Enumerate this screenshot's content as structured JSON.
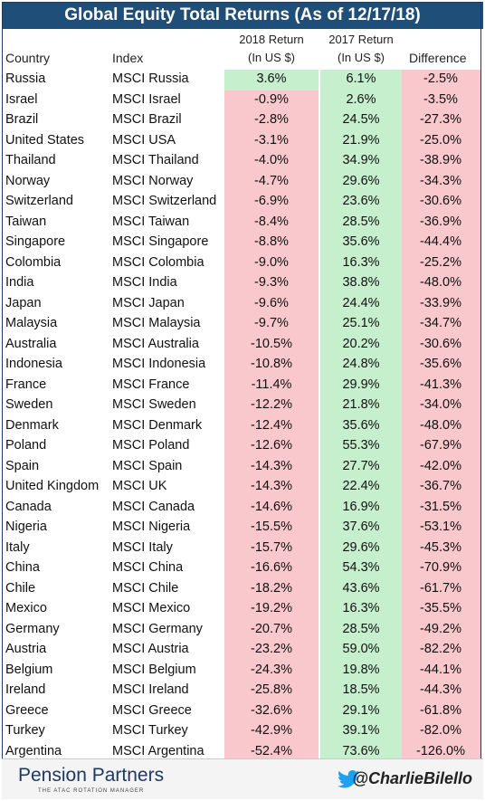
{
  "title": "Global Equity Total Returns (As of  12/17/18)",
  "headers": {
    "country": "Country",
    "index": "Index",
    "r2018_line1": "2018 Return",
    "r2018_line2": "(In US $)",
    "r2017_line1": "2017 Return",
    "r2017_line2": "(In US $)",
    "difference": "Difference"
  },
  "colors": {
    "title_bg": "#1f4e79",
    "negative_bg": "#f8c8cc",
    "positive_bg": "#c6efce"
  },
  "rows": [
    {
      "country": "Russia",
      "index": "MSCI Russia",
      "r2018": "3.6%",
      "r2017": "6.1%",
      "diff": "-2.5%"
    },
    {
      "country": "Israel",
      "index": "MSCI Israel",
      "r2018": "-0.9%",
      "r2017": "2.6%",
      "diff": "-3.5%"
    },
    {
      "country": "Brazil",
      "index": "MSCI Brazil",
      "r2018": "-2.8%",
      "r2017": "24.5%",
      "diff": "-27.3%"
    },
    {
      "country": "United States",
      "index": "MSCI USA",
      "r2018": "-3.1%",
      "r2017": "21.9%",
      "diff": "-25.0%"
    },
    {
      "country": "Thailand",
      "index": "MSCI Thailand",
      "r2018": "-4.0%",
      "r2017": "34.9%",
      "diff": "-38.9%"
    },
    {
      "country": "Norway",
      "index": "MSCI Norway",
      "r2018": "-4.7%",
      "r2017": "29.6%",
      "diff": "-34.3%"
    },
    {
      "country": "Switzerland",
      "index": "MSCI Switzerland",
      "r2018": "-6.9%",
      "r2017": "23.6%",
      "diff": "-30.6%"
    },
    {
      "country": "Taiwan",
      "index": "MSCI Taiwan",
      "r2018": "-8.4%",
      "r2017": "28.5%",
      "diff": "-36.9%"
    },
    {
      "country": "Singapore",
      "index": "MSCI Singapore",
      "r2018": "-8.8%",
      "r2017": "35.6%",
      "diff": "-44.4%"
    },
    {
      "country": "Colombia",
      "index": "MSCI Colombia",
      "r2018": "-9.0%",
      "r2017": "16.3%",
      "diff": "-25.2%"
    },
    {
      "country": "India",
      "index": "MSCI India",
      "r2018": "-9.3%",
      "r2017": "38.8%",
      "diff": "-48.0%"
    },
    {
      "country": "Japan",
      "index": "MSCI Japan",
      "r2018": "-9.6%",
      "r2017": "24.4%",
      "diff": "-33.9%"
    },
    {
      "country": "Malaysia",
      "index": "MSCI Malaysia",
      "r2018": "-9.7%",
      "r2017": "25.1%",
      "diff": "-34.7%"
    },
    {
      "country": "Australia",
      "index": "MSCI Australia",
      "r2018": "-10.5%",
      "r2017": "20.2%",
      "diff": "-30.6%"
    },
    {
      "country": "Indonesia",
      "index": "MSCI Indonesia",
      "r2018": "-10.8%",
      "r2017": "24.8%",
      "diff": "-35.6%"
    },
    {
      "country": "France",
      "index": "MSCI France",
      "r2018": "-11.4%",
      "r2017": "29.9%",
      "diff": "-41.3%"
    },
    {
      "country": "Sweden",
      "index": "MSCI Sweden",
      "r2018": "-12.2%",
      "r2017": "21.8%",
      "diff": "-34.0%"
    },
    {
      "country": "Denmark",
      "index": "MSCI Denmark",
      "r2018": "-12.4%",
      "r2017": "35.6%",
      "diff": "-48.0%"
    },
    {
      "country": "Poland",
      "index": "MSCI Poland",
      "r2018": "-12.6%",
      "r2017": "55.3%",
      "diff": "-67.9%"
    },
    {
      "country": "Spain",
      "index": "MSCI Spain",
      "r2018": "-14.3%",
      "r2017": "27.7%",
      "diff": "-42.0%"
    },
    {
      "country": "United Kingdom",
      "index": "MSCI UK",
      "r2018": "-14.3%",
      "r2017": "22.4%",
      "diff": "-36.7%"
    },
    {
      "country": "Canada",
      "index": "MSCI Canada",
      "r2018": "-14.6%",
      "r2017": "16.9%",
      "diff": "-31.5%"
    },
    {
      "country": "Nigeria",
      "index": "MSCI Nigeria",
      "r2018": "-15.5%",
      "r2017": "37.6%",
      "diff": "-53.1%"
    },
    {
      "country": "Italy",
      "index": "MSCI Italy",
      "r2018": "-15.7%",
      "r2017": "29.6%",
      "diff": "-45.3%"
    },
    {
      "country": "China",
      "index": "MSCI China",
      "r2018": "-16.6%",
      "r2017": "54.3%",
      "diff": "-70.9%"
    },
    {
      "country": "Chile",
      "index": "MSCI Chile",
      "r2018": "-18.2%",
      "r2017": "43.6%",
      "diff": "-61.7%"
    },
    {
      "country": "Mexico",
      "index": "MSCI Mexico",
      "r2018": "-19.2%",
      "r2017": "16.3%",
      "diff": "-35.5%"
    },
    {
      "country": "Germany",
      "index": "MSCI Germany",
      "r2018": "-20.7%",
      "r2017": "28.5%",
      "diff": "-49.2%"
    },
    {
      "country": "Austria",
      "index": "MSCI Austria",
      "r2018": "-23.2%",
      "r2017": "59.0%",
      "diff": "-82.2%"
    },
    {
      "country": "Belgium",
      "index": "MSCI Belgium",
      "r2018": "-24.3%",
      "r2017": "19.8%",
      "diff": "-44.1%"
    },
    {
      "country": "Ireland",
      "index": "MSCI Ireland",
      "r2018": "-25.8%",
      "r2017": "18.5%",
      "diff": "-44.3%"
    },
    {
      "country": "Greece",
      "index": "MSCI Greece",
      "r2018": "-32.6%",
      "r2017": "29.1%",
      "diff": "-61.8%"
    },
    {
      "country": "Turkey",
      "index": "MSCI Turkey",
      "r2018": "-42.9%",
      "r2017": "39.1%",
      "diff": "-82.0%"
    },
    {
      "country": "Argentina",
      "index": "MSCI Argentina",
      "r2018": "-52.4%",
      "r2017": "73.6%",
      "diff": "-126.0%"
    }
  ],
  "footer": {
    "brand": "Pension Partners",
    "brand_sub": "THE ATAC ROTATION MANAGER",
    "handle": "@CharlieBilello",
    "handle_icon": "twitter-bird-icon"
  }
}
